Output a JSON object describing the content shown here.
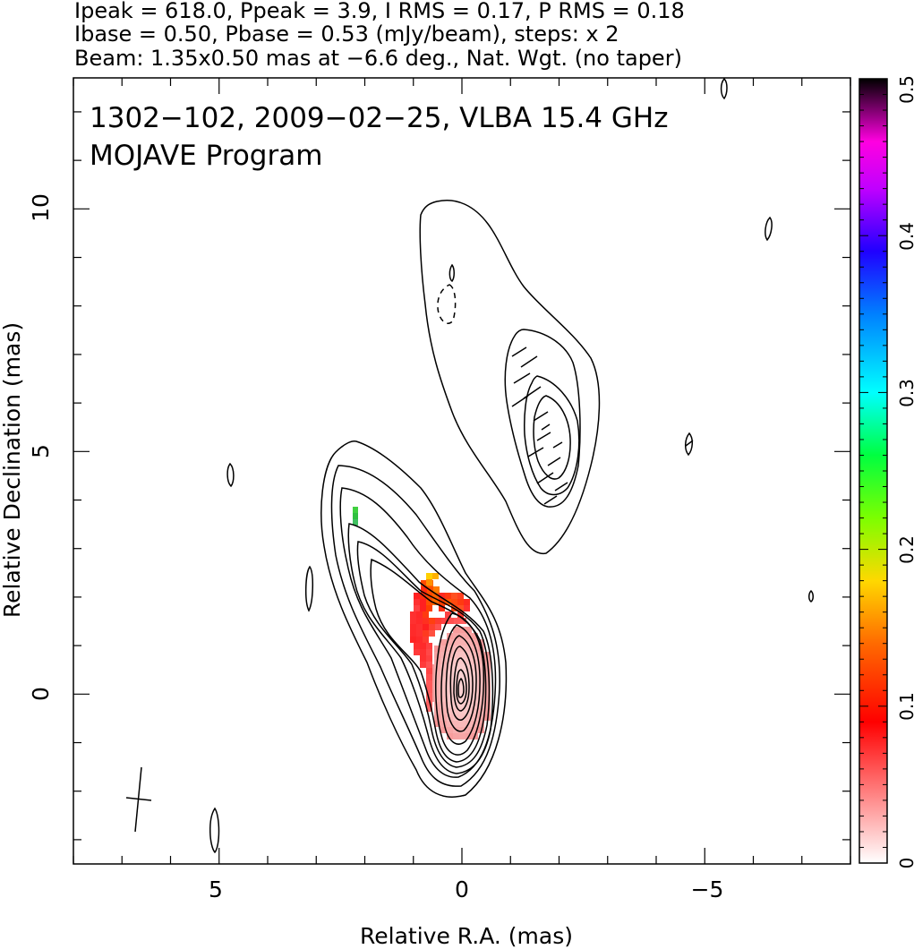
{
  "header": {
    "line1": "Ipeak = 618.0, Ppeak = 3.9, I RMS = 0.17, P RMS = 0.18",
    "line2": "Ibase = 0.50, Pbase = 0.53 (mJy/beam), steps: x 2",
    "line3": "Beam: 1.35x0.50 mas at −6.6 deg., Nat. Wgt. (no taper)"
  },
  "chart_data": {
    "type": "heatmap",
    "title": "1302−102, 2009−02−25, VLBA 15.4 GHz",
    "subtitle": "MOJAVE Program",
    "xlabel": "Relative R.A. (mas)",
    "ylabel": "Relative Declination (mas)",
    "xlim": [
      8.0,
      -8.0
    ],
    "ylim": [
      -3.5,
      12.7
    ],
    "x_ticks": [
      5,
      0,
      -5
    ],
    "x_tick_labels": [
      "5",
      "0",
      "−5"
    ],
    "y_ticks": [
      0,
      5,
      10
    ],
    "y_tick_labels": [
      "0",
      "5",
      "10"
    ],
    "colorbar": {
      "range": [
        0,
        0.5
      ],
      "ticks": [
        0,
        0.1,
        0.2,
        0.3,
        0.4,
        0.5
      ],
      "tick_labels": [
        "0",
        "0.1",
        "0.2",
        "0.3",
        "0.4",
        "0.5"
      ]
    },
    "stokes_i": {
      "peak": 618.0,
      "base": 0.5,
      "rms": 0.17,
      "contour_step": "x 2",
      "core_position": [
        0.0,
        0.0
      ],
      "jet_component_position": [
        -1.9,
        5.2
      ]
    },
    "polarization": {
      "peak": 3.9,
      "base": 0.53,
      "rms": 0.18,
      "units": "mJy/beam"
    },
    "beam": {
      "major_mas": 1.35,
      "minor_mas": 0.5,
      "pa_deg": -6.6,
      "weighting": "Nat. Wgt. (no taper)"
    },
    "grid": false,
    "legend": "none"
  },
  "colors": {
    "contour": "#000000",
    "colormap": [
      "#ffffff",
      "#ff0000",
      "#ff8000",
      "#ffff00",
      "#00ff00",
      "#00ffff",
      "#0000ff",
      "#ff00ff",
      "#000000"
    ]
  }
}
